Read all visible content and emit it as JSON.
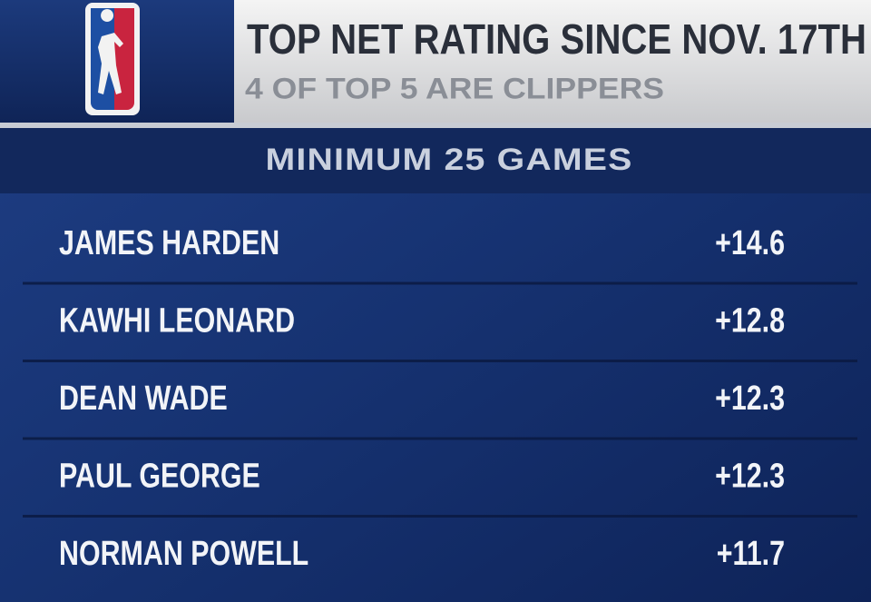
{
  "header": {
    "title": "TOP NET RATING SINCE NOV. 17TH",
    "subtitle": "4 OF TOP 5 ARE CLIPPERS"
  },
  "table": {
    "caption": "MINIMUM 25 GAMES",
    "rows": [
      [
        "JAMES HARDEN",
        "+14.6"
      ],
      [
        "KAWHI LEONARD",
        "+12.8"
      ],
      [
        "DEAN WADE",
        "+12.3"
      ],
      [
        "PAUL GEORGE",
        "+12.3"
      ],
      [
        "NORMAN POWELL",
        "+11.7"
      ]
    ]
  }
}
